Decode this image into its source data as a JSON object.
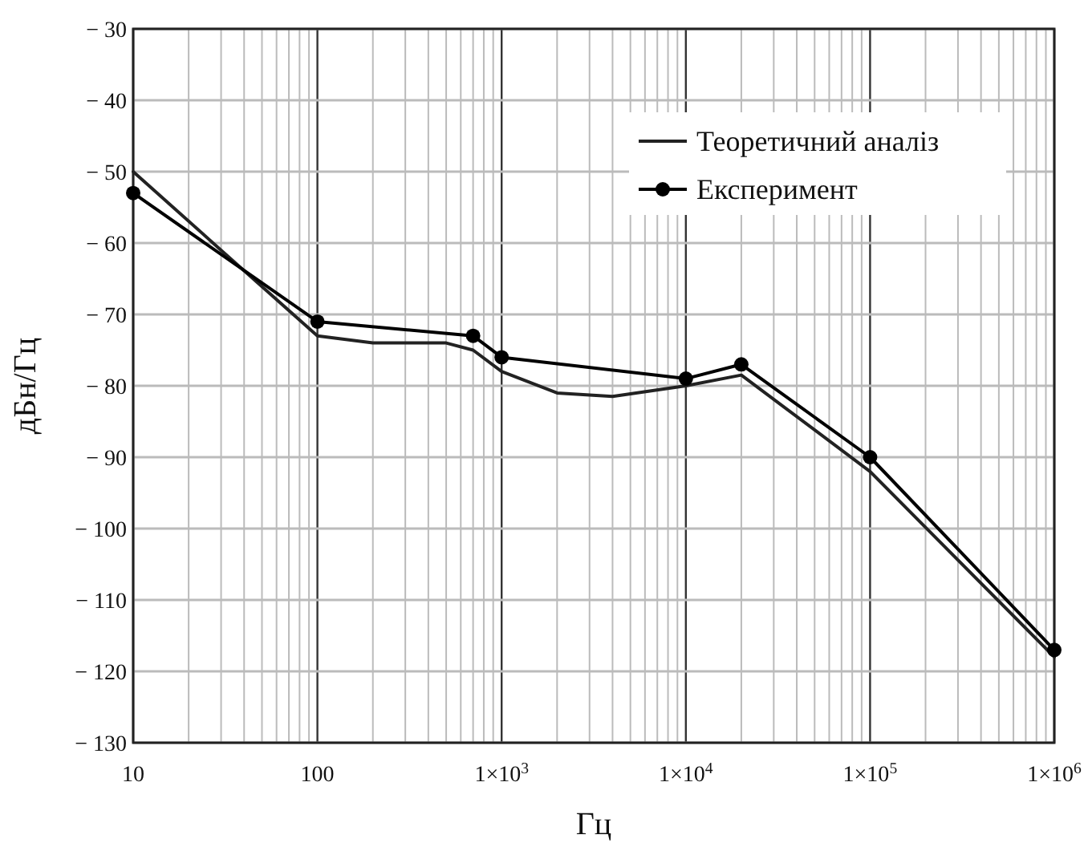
{
  "chart_data": {
    "type": "line",
    "xlabel": "Гц",
    "ylabel": "дБн/Гц",
    "log": "x",
    "grid": true,
    "legend": "top right",
    "xlim": [
      10,
      1000000
    ],
    "ylim": [
      -130,
      -30
    ],
    "xticks": [
      10,
      {
        "value": 20,
        "label": null
      },
      {
        "value": 30,
        "label": null
      },
      {
        "value": 40,
        "label": null
      },
      {
        "value": 50,
        "label": null
      },
      {
        "value": 60,
        "label": null
      },
      {
        "value": 70,
        "label": null
      },
      {
        "value": 80,
        "label": null
      },
      {
        "value": 90,
        "label": null
      },
      100,
      {
        "value": 200,
        "label": null
      },
      {
        "value": 300,
        "label": null
      },
      {
        "value": 400,
        "label": null
      },
      {
        "value": 500,
        "label": null
      },
      {
        "value": 600,
        "label": null
      },
      {
        "value": 700,
        "label": null
      },
      {
        "value": 800,
        "label": null
      },
      {
        "value": 900,
        "label": null
      },
      {
        "value": 1000,
        "label": "1×10$^{3}$"
      },
      {
        "value": 2000,
        "label": null
      },
      {
        "value": 3000,
        "label": null
      },
      {
        "value": 4000,
        "label": null
      },
      {
        "value": 5000,
        "label": null
      },
      {
        "value": 6000,
        "label": null
      },
      {
        "value": 7000,
        "label": null
      },
      {
        "value": 8000,
        "label": null
      },
      {
        "value": 9000,
        "label": null
      },
      {
        "value": 10000,
        "label": "1×10$^{4}$"
      },
      {
        "value": 20000,
        "label": null
      },
      {
        "value": 30000,
        "label": null
      },
      {
        "value": 40000,
        "label": null
      },
      {
        "value": 50000,
        "label": null
      },
      {
        "value": 60000,
        "label": null
      },
      {
        "value": 70000,
        "label": null
      },
      {
        "value": 80000,
        "label": null
      },
      {
        "value": 90000,
        "label": null
      },
      {
        "value": 100000,
        "label": "1×10$^{5}$"
      },
      {
        "value": 200000,
        "label": null
      },
      {
        "value": 300000,
        "label": null
      },
      {
        "value": 400000,
        "label": null
      },
      {
        "value": 500000,
        "label": null
      },
      {
        "value": 600000,
        "label": null
      },
      {
        "value": 700000,
        "label": null
      },
      {
        "value": 800000,
        "label": null
      },
      {
        "value": 900000,
        "label": null
      },
      {
        "value": 1000000,
        "label": "1×10$^{6}$"
      }
    ],
    "yticks": [
      {
        "value": -30,
        "label": "− 30"
      },
      {
        "value": -40,
        "label": "− 40"
      },
      {
        "value": -50,
        "label": "− 50"
      },
      {
        "value": -60,
        "label": "− 60"
      },
      {
        "value": -70,
        "label": "− 70"
      },
      {
        "value": -80,
        "label": "− 80"
      },
      {
        "value": -90,
        "label": "− 90"
      },
      {
        "value": -100,
        "label": "− 100"
      },
      {
        "value": -110,
        "label": "− 110"
      },
      {
        "value": -120,
        "label": "− 120"
      },
      {
        "value": -130,
        "label": "− 130"
      }
    ],
    "series": [
      {
        "name": "Теоретичний аналіз",
        "color": "#222222",
        "marker": "none",
        "x": [
          10,
          30,
          100,
          200,
          500,
          700,
          1000,
          2000,
          4000,
          10000,
          20000,
          100000,
          1000000
        ],
        "values": [
          -50,
          -61,
          -73,
          -74,
          -74,
          -75,
          -78,
          -81,
          -81.5,
          -80,
          -78.5,
          -92,
          -118
        ]
      },
      {
        "name": "Експеримент",
        "color": "#000000",
        "marker": "circle",
        "x": [
          10,
          100,
          700,
          1000,
          10000,
          20000,
          100000,
          1000000
        ],
        "values": [
          -53,
          -71,
          -73,
          -76,
          -79,
          -77,
          -90,
          -117
        ]
      }
    ]
  }
}
